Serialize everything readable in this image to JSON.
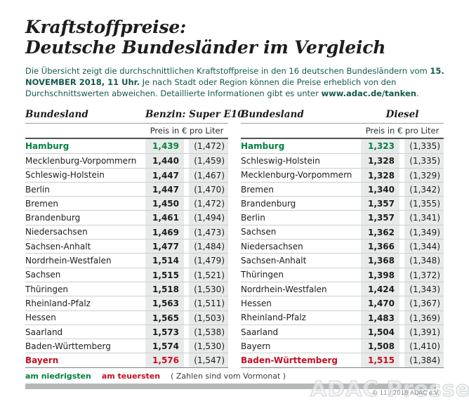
{
  "header": {
    "title_line1": "Kraftstoffpreise:",
    "title_line2": "Deutsche Bundesländer im Vergleich"
  },
  "intro_segments": [
    {
      "text": "Die Übersicht zeigt die durchschnittlichen Kraftstoffpreise in den 16 deutschen Bundesländern vom ",
      "bold": false
    },
    {
      "text": "15. NOVEMBER 2018, 11 Uhr.",
      "bold": true
    },
    {
      "text": " Je nach Stadt oder Region können die Preise erheblich von den Durchschnittswerten abweichen. Detaillierte Informationen gibt es unter ",
      "bold": false
    },
    {
      "text": "www.adac.de/tanken",
      "bold": true
    },
    {
      "text": ".",
      "bold": false
    }
  ],
  "chart_data": [
    {
      "type": "table",
      "title": "Benzin: Super E10",
      "state_column_header": "Bundesland",
      "unit_label": "Preis in € pro Liter",
      "rows": [
        {
          "state": "Hamburg",
          "price": "1,439",
          "previous": "(1,472)",
          "highlight": "lowest"
        },
        {
          "state": "Mecklenburg-Vorpommern",
          "price": "1,440",
          "previous": "(1,459)",
          "highlight": "none"
        },
        {
          "state": "Schleswig-Holstein",
          "price": "1,447",
          "previous": "(1,467)",
          "highlight": "none"
        },
        {
          "state": "Berlin",
          "price": "1,447",
          "previous": "(1,470)",
          "highlight": "none"
        },
        {
          "state": "Bremen",
          "price": "1,450",
          "previous": "(1,472)",
          "highlight": "none"
        },
        {
          "state": "Brandenburg",
          "price": "1,461",
          "previous": "(1,494)",
          "highlight": "none"
        },
        {
          "state": "Niedersachsen",
          "price": "1,469",
          "previous": "(1,473)",
          "highlight": "none"
        },
        {
          "state": "Sachsen-Anhalt",
          "price": "1,477",
          "previous": "(1,484)",
          "highlight": "none"
        },
        {
          "state": "Nordrhein-Westfalen",
          "price": "1,514",
          "previous": "(1,479)",
          "highlight": "none"
        },
        {
          "state": "Sachsen",
          "price": "1,515",
          "previous": "(1,521)",
          "highlight": "none"
        },
        {
          "state": "Thüringen",
          "price": "1,518",
          "previous": "(1,530)",
          "highlight": "none"
        },
        {
          "state": "Rheinland-Pfalz",
          "price": "1,563",
          "previous": "(1,511)",
          "highlight": "none"
        },
        {
          "state": "Hessen",
          "price": "1,565",
          "previous": "(1,503)",
          "highlight": "none"
        },
        {
          "state": "Saarland",
          "price": "1,573",
          "previous": "(1,538)",
          "highlight": "none"
        },
        {
          "state": "Baden-Württemberg",
          "price": "1,574",
          "previous": "(1,530)",
          "highlight": "none"
        },
        {
          "state": "Bayern",
          "price": "1,576",
          "previous": "(1,547)",
          "highlight": "highest"
        }
      ]
    },
    {
      "type": "table",
      "title": "Diesel",
      "state_column_header": "Bundesland",
      "unit_label": "Preis in € pro Liter",
      "rows": [
        {
          "state": "Hamburg",
          "price": "1,323",
          "previous": "(1,335)",
          "highlight": "lowest"
        },
        {
          "state": "Schleswig-Holstein",
          "price": "1,328",
          "previous": "(1,335)",
          "highlight": "none"
        },
        {
          "state": "Mecklenburg-Vorpommern",
          "price": "1,328",
          "previous": "(1,329)",
          "highlight": "none"
        },
        {
          "state": "Bremen",
          "price": "1,340",
          "previous": "(1,342)",
          "highlight": "none"
        },
        {
          "state": "Brandenburg",
          "price": "1,357",
          "previous": "(1,355)",
          "highlight": "none"
        },
        {
          "state": "Berlin",
          "price": "1,357",
          "previous": "(1,341)",
          "highlight": "none"
        },
        {
          "state": "Sachsen",
          "price": "1,362",
          "previous": "(1,349)",
          "highlight": "none"
        },
        {
          "state": "Niedersachsen",
          "price": "1,366",
          "previous": "(1,344)",
          "highlight": "none"
        },
        {
          "state": "Sachsen-Anhalt",
          "price": "1,368",
          "previous": "(1,348)",
          "highlight": "none"
        },
        {
          "state": "Thüringen",
          "price": "1,398",
          "previous": "(1,372)",
          "highlight": "none"
        },
        {
          "state": "Nordrhein-Westfalen",
          "price": "1,424",
          "previous": "(1,343)",
          "highlight": "none"
        },
        {
          "state": "Hessen",
          "price": "1,470",
          "previous": "(1,367)",
          "highlight": "none"
        },
        {
          "state": "Rheinland-Pfalz",
          "price": "1,483",
          "previous": "(1,369)",
          "highlight": "none"
        },
        {
          "state": "Saarland",
          "price": "1,504",
          "previous": "(1,391)",
          "highlight": "none"
        },
        {
          "state": "Bayern",
          "price": "1,508",
          "previous": "(1,410)",
          "highlight": "none"
        },
        {
          "state": "Baden-Württemberg",
          "price": "1,515",
          "previous": "(1,384)",
          "highlight": "highest"
        }
      ]
    }
  ],
  "legend": {
    "lowest_label": "am niedrigsten",
    "highest_label": "am teuersten",
    "note": "( Zahlen sind vom Vormonat )"
  },
  "footer": {
    "watermark": "ADAC Presse",
    "copyright": "© 11 / 2018 ADAC e.V."
  },
  "colors": {
    "lowest_green": "#00833e",
    "highest_red": "#c3101f",
    "intro_teal": "#15594d",
    "cell_background": "#e8eaea",
    "bottom_bar_gray": "#b4b8b9"
  }
}
